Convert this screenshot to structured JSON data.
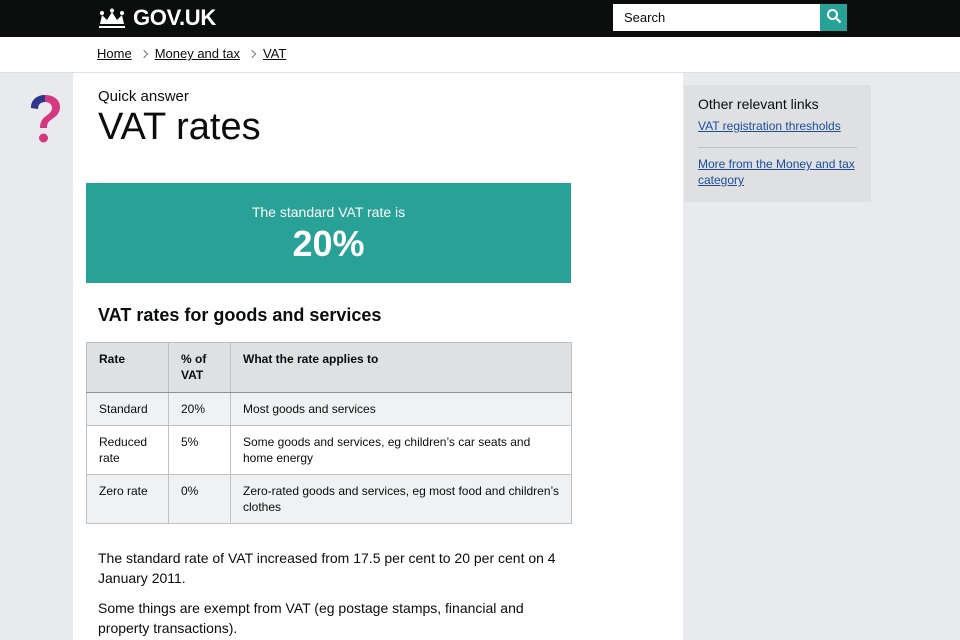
{
  "header": {
    "logo_text": "GOV.UK",
    "search_placeholder": "Search",
    "search_icon": "magnifier-icon"
  },
  "breadcrumb": {
    "items": [
      "Home",
      "Money and tax",
      "VAT"
    ]
  },
  "page": {
    "kicker": "Quick answer",
    "title": "VAT rates"
  },
  "answer": {
    "label": "The standard VAT rate is",
    "value": "20%"
  },
  "section_title": "VAT rates for goods and services",
  "table": {
    "headers": [
      "Rate",
      "% of VAT",
      "What the rate applies to"
    ],
    "rows": [
      [
        "Standard",
        "20%",
        "Most goods and services"
      ],
      [
        "Reduced rate",
        "5%",
        "Some goods and services, eg children’s car seats and home energy"
      ],
      [
        "Zero rate",
        "0%",
        "Zero-rated goods and services, eg most food and children’s clothes"
      ]
    ]
  },
  "paragraphs": [
    "The standard rate of VAT increased from 17.5 per cent to 20 per cent on 4 January 2011.",
    "Some things are exempt from VAT (eg postage stamps, financial and property transactions)."
  ],
  "related": {
    "title": "Other relevant links",
    "links": [
      "VAT registration thresholds"
    ],
    "more_link": "More from the Money and tax category"
  },
  "colors": {
    "header_bg": "#0b0c0c",
    "accent_turquoise": "#28a197",
    "link": "#1d4d9b",
    "gutter_bg": "#e8eaed",
    "qmark_magenta": "#d53880",
    "qmark_blue": "#2e358b"
  }
}
